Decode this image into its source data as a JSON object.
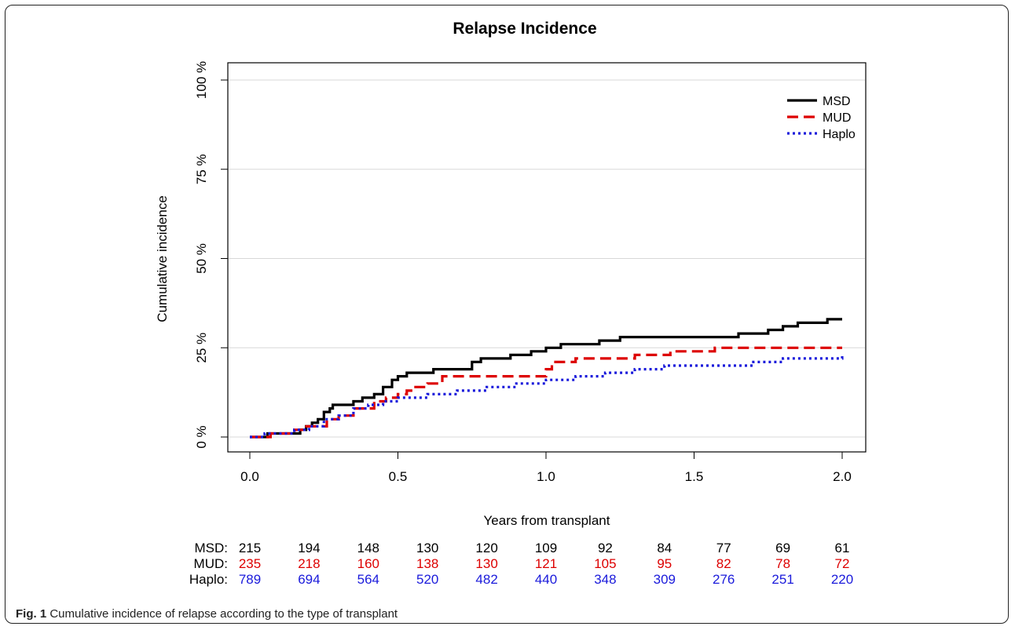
{
  "chart_data": {
    "type": "line",
    "title": "Relapse Incidence",
    "xlabel": "Years from transplant",
    "ylabel": "Cumulative incidence",
    "xlim": [
      0,
      2
    ],
    "ylim": [
      0,
      100
    ],
    "x_ticks": [
      "0.0",
      "0.5",
      "1.0",
      "1.5",
      "2.0"
    ],
    "y_ticks": [
      "0 %",
      "25 %",
      "50 %",
      "75 %",
      "100 %"
    ],
    "grid": "horizontal",
    "legend": "top-right",
    "series": [
      {
        "name": "MSD",
        "color": "#000000",
        "style": "solid",
        "points": [
          [
            0,
            0
          ],
          [
            0.05,
            0
          ],
          [
            0.06,
            1
          ],
          [
            0.09,
            1
          ],
          [
            0.15,
            1
          ],
          [
            0.17,
            2
          ],
          [
            0.19,
            3
          ],
          [
            0.21,
            4
          ],
          [
            0.23,
            5
          ],
          [
            0.25,
            7
          ],
          [
            0.27,
            8
          ],
          [
            0.28,
            9
          ],
          [
            0.33,
            9
          ],
          [
            0.35,
            10
          ],
          [
            0.38,
            11
          ],
          [
            0.42,
            12
          ],
          [
            0.45,
            14
          ],
          [
            0.48,
            16
          ],
          [
            0.5,
            17
          ],
          [
            0.53,
            18
          ],
          [
            0.62,
            19
          ],
          [
            0.72,
            19
          ],
          [
            0.75,
            21
          ],
          [
            0.78,
            22
          ],
          [
            0.85,
            22
          ],
          [
            0.88,
            23
          ],
          [
            0.95,
            24
          ],
          [
            1.0,
            25
          ],
          [
            1.05,
            26
          ],
          [
            1.14,
            26
          ],
          [
            1.18,
            27
          ],
          [
            1.25,
            28
          ],
          [
            1.5,
            28
          ],
          [
            1.65,
            29
          ],
          [
            1.75,
            30
          ],
          [
            1.8,
            31
          ],
          [
            1.85,
            32
          ],
          [
            1.93,
            32
          ],
          [
            1.95,
            33
          ],
          [
            2.0,
            33
          ]
        ]
      },
      {
        "name": "MUD",
        "color": "#dd0000",
        "style": "dashed",
        "points": [
          [
            0,
            0
          ],
          [
            0.05,
            0
          ],
          [
            0.07,
            1
          ],
          [
            0.1,
            1
          ],
          [
            0.15,
            2
          ],
          [
            0.18,
            3
          ],
          [
            0.22,
            3
          ],
          [
            0.26,
            5
          ],
          [
            0.3,
            6
          ],
          [
            0.35,
            8
          ],
          [
            0.38,
            8
          ],
          [
            0.42,
            10
          ],
          [
            0.46,
            11
          ],
          [
            0.5,
            12
          ],
          [
            0.53,
            13
          ],
          [
            0.55,
            14
          ],
          [
            0.6,
            15
          ],
          [
            0.65,
            17
          ],
          [
            0.95,
            17
          ],
          [
            1.0,
            19
          ],
          [
            1.02,
            21
          ],
          [
            1.1,
            22
          ],
          [
            1.25,
            22
          ],
          [
            1.3,
            23
          ],
          [
            1.4,
            23
          ],
          [
            1.42,
            24
          ],
          [
            1.55,
            24
          ],
          [
            1.57,
            25
          ],
          [
            2.0,
            25
          ]
        ]
      },
      {
        "name": "Haplo",
        "color": "#1a1adb",
        "style": "dotted",
        "points": [
          [
            0,
            0
          ],
          [
            0.05,
            1
          ],
          [
            0.1,
            1
          ],
          [
            0.15,
            2
          ],
          [
            0.2,
            3
          ],
          [
            0.25,
            5
          ],
          [
            0.3,
            6
          ],
          [
            0.35,
            8
          ],
          [
            0.4,
            9
          ],
          [
            0.45,
            10
          ],
          [
            0.5,
            11
          ],
          [
            0.55,
            11
          ],
          [
            0.6,
            12
          ],
          [
            0.7,
            13
          ],
          [
            0.8,
            14
          ],
          [
            0.9,
            15
          ],
          [
            1.0,
            16
          ],
          [
            1.1,
            17
          ],
          [
            1.2,
            18
          ],
          [
            1.3,
            19
          ],
          [
            1.4,
            20
          ],
          [
            1.6,
            20
          ],
          [
            1.7,
            21
          ],
          [
            1.8,
            22
          ],
          [
            1.9,
            22
          ],
          [
            2.0,
            23
          ]
        ]
      }
    ],
    "risk_table": {
      "rows": [
        {
          "label": "MSD:",
          "color": "#000000",
          "values": [
            "215",
            "194",
            "148",
            "130",
            "120",
            "109",
            "92",
            "84",
            "77",
            "69",
            "61"
          ]
        },
        {
          "label": "MUD:",
          "color": "#dd0000",
          "values": [
            "235",
            "218",
            "160",
            "138",
            "130",
            "121",
            "105",
            "95",
            "82",
            "78",
            "72"
          ]
        },
        {
          "label": "Haplo:",
          "color": "#1a1adb",
          "values": [
            "789",
            "694",
            "564",
            "520",
            "482",
            "440",
            "348",
            "309",
            "276",
            "251",
            "220"
          ]
        }
      ]
    }
  },
  "caption": {
    "label": "Fig. 1",
    "text": "Cumulative incidence of relapse according to the type of transplant"
  }
}
